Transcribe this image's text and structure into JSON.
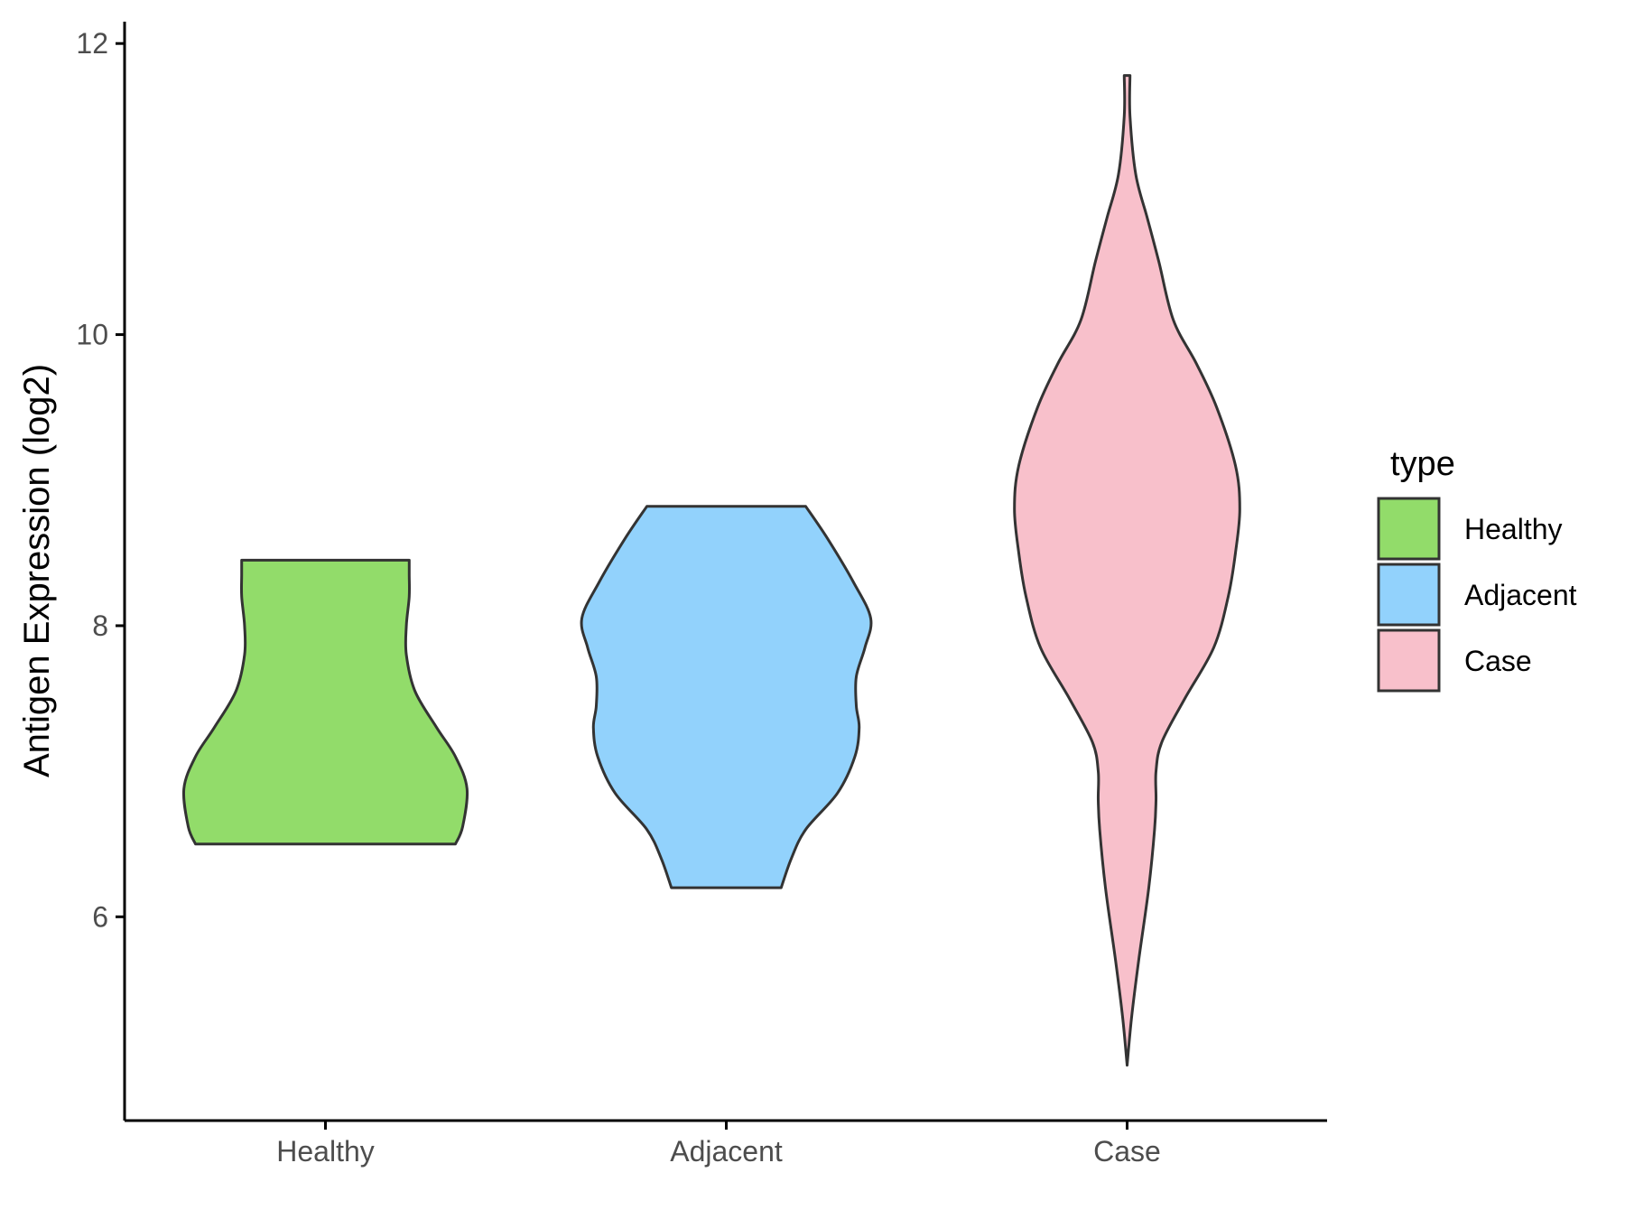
{
  "chart_data": {
    "type": "violin",
    "ylabel": "Antigen Expression (log2)",
    "xlabel": "",
    "ylim": [
      4.6,
      12.15
    ],
    "yticks": [
      6,
      8,
      10,
      12
    ],
    "categories": [
      "Healthy",
      "Adjacent",
      "Case"
    ],
    "legend": {
      "title": "type",
      "placement": "right"
    },
    "grid": false,
    "series": [
      {
        "category": "Healthy",
        "color": "#92DC6A",
        "min": 6.5,
        "max": 8.45,
        "profile": [
          [
            6.5,
            0.9
          ],
          [
            6.62,
            0.95
          ],
          [
            6.88,
            0.98
          ],
          [
            7.1,
            0.9
          ],
          [
            7.3,
            0.77
          ],
          [
            7.55,
            0.62
          ],
          [
            7.8,
            0.56
          ],
          [
            8.0,
            0.56
          ],
          [
            8.2,
            0.58
          ],
          [
            8.35,
            0.58
          ],
          [
            8.45,
            0.58
          ]
        ]
      },
      {
        "category": "Adjacent",
        "color": "#92D2FC",
        "min": 6.2,
        "max": 8.82,
        "profile": [
          [
            6.2,
            0.38
          ],
          [
            6.4,
            0.45
          ],
          [
            6.6,
            0.55
          ],
          [
            6.85,
            0.77
          ],
          [
            7.1,
            0.89
          ],
          [
            7.3,
            0.92
          ],
          [
            7.45,
            0.9
          ],
          [
            7.65,
            0.9
          ],
          [
            7.85,
            0.96
          ],
          [
            8.05,
            1.0
          ],
          [
            8.3,
            0.88
          ],
          [
            8.6,
            0.7
          ],
          [
            8.82,
            0.55
          ]
        ]
      },
      {
        "category": "Case",
        "color": "#F8C0CB",
        "min": 4.98,
        "max": 11.78,
        "profile": [
          [
            4.98,
            0.0
          ],
          [
            5.3,
            0.03
          ],
          [
            5.7,
            0.08
          ],
          [
            6.2,
            0.15
          ],
          [
            6.6,
            0.19
          ],
          [
            6.8,
            0.2
          ],
          [
            7.0,
            0.2
          ],
          [
            7.2,
            0.24
          ],
          [
            7.5,
            0.4
          ],
          [
            7.85,
            0.6
          ],
          [
            8.2,
            0.7
          ],
          [
            8.5,
            0.75
          ],
          [
            8.8,
            0.78
          ],
          [
            9.1,
            0.75
          ],
          [
            9.5,
            0.62
          ],
          [
            9.8,
            0.48
          ],
          [
            10.1,
            0.32
          ],
          [
            10.5,
            0.22
          ],
          [
            10.8,
            0.14
          ],
          [
            11.1,
            0.06
          ],
          [
            11.5,
            0.02
          ],
          [
            11.78,
            0.02
          ]
        ]
      }
    ]
  }
}
